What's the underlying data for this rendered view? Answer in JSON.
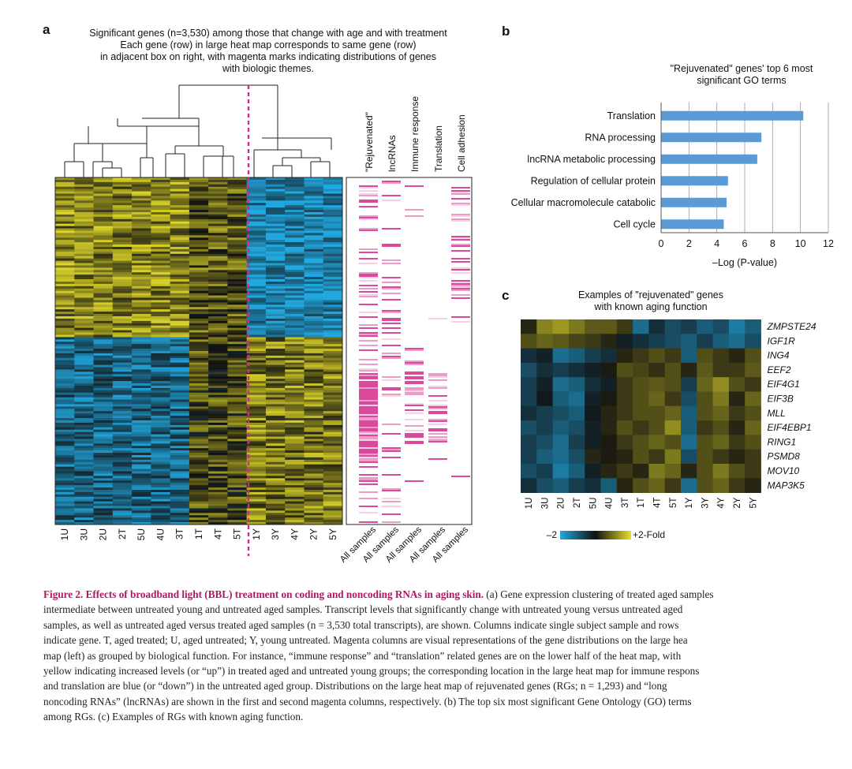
{
  "panel_a": {
    "letter": "a",
    "title_lines": [
      "Significant genes (n=3,530) among those that change with age and with treatment",
      "Each gene (row) in large heat map corresponds to same gene (row)",
      "in adjacent box on right, with magenta marks indicating distributions of genes",
      "with biologic themes."
    ],
    "sample_labels": [
      "1U",
      "3U",
      "2U",
      "2T",
      "5U",
      "4U",
      "3T",
      "1T",
      "4T",
      "5T",
      "1Y",
      "3Y",
      "4Y",
      "2Y",
      "5Y"
    ],
    "theme_columns": [
      "\"Rejuvenated\"",
      "lncRNAs",
      "Immune response",
      "Translation",
      "Cell adhesion"
    ],
    "theme_sublabels": [
      "All samples",
      "All samples",
      "All samples",
      "All samples",
      "All samples"
    ]
  },
  "panel_b": {
    "letter": "b",
    "title_lines": [
      "\"Rejuvenated\" genes' top 6 most",
      "significant GO terms"
    ],
    "chart_data": {
      "type": "bar",
      "orientation": "horizontal",
      "categories": [
        "Translation",
        "RNA processing",
        "lncRNA metabolic processing",
        "Regulation of cellular protein",
        "Cellular macromolecule catabolic",
        "Cell cycle"
      ],
      "values": [
        10.2,
        7.2,
        6.9,
        4.8,
        4.7,
        4.5
      ],
      "xlabel": "–Log (P-value)",
      "xlim": [
        0,
        12
      ],
      "xticks": [
        "0",
        "2",
        "4",
        "6",
        "8",
        "10",
        "12"
      ],
      "grid": true,
      "bar_color": "#5b9bd5"
    }
  },
  "panel_c": {
    "letter": "c",
    "title_lines": [
      "Examples of \"rejuvenated\" genes",
      "with known aging function"
    ],
    "genes": [
      "ZMPSTE24",
      "IGF1R",
      "ING4",
      "EEF2",
      "EIF4G1",
      "EIF3B",
      "MLL",
      "EIF4EBP1",
      "RING1",
      "PSMD8",
      "MOV10",
      "MAP3K5"
    ],
    "sample_labels": [
      "1U",
      "3U",
      "2U",
      "2T",
      "5U",
      "4U",
      "3T",
      "1T",
      "4T",
      "5T",
      "1Y",
      "3Y",
      "4Y",
      "2Y",
      "5Y"
    ],
    "legend_low": "–2",
    "legend_high": "+2-Fold",
    "colors": {
      "low": "#22a8e0",
      "mid": "#111111",
      "high": "#e8e02a"
    }
  },
  "caption": {
    "lines": [
      {
        "title": "Figure 2. Effects of broadband light (BBL) treatment on coding and noncoding RNAs in aging skin.",
        "text": " (a) Gene expression clustering of treated aged samples"
      },
      {
        "text": "intermediate between untreated young and untreated aged samples. Transcript levels that significantly change with untreated young versus untreated aged"
      },
      {
        "text": "samples, as well as untreated aged versus treated aged samples (n = 3,530 total transcripts), are shown. Columns indicate single subject sample and rows"
      },
      {
        "text": "indicate gene. T, aged treated; U, aged untreated; Y, young untreated. Magenta columns are visual representations of the gene distributions on the large hea"
      },
      {
        "text": "map (left) as grouped by biological function. For instance, “immune response” and “translation” related genes are on the lower half of the heat map, with"
      },
      {
        "text": "yellow indicating increased levels (or “up”) in treated aged and untreated young groups; the corresponding location in the large heat map for immune respons"
      },
      {
        "text": "and translation are blue (or “down”) in the untreated aged group. Distributions on the large heat map of rejuvenated genes (RGs; n = 1,293) and “long"
      },
      {
        "text": "noncoding RNAs” (lncRNAs) are shown in the first and second magenta columns, respectively. (b) The top six most significant Gene Ontology (GO) terms"
      },
      {
        "text": "among RGs. (c) Examples of RGs with known aging function."
      }
    ]
  }
}
